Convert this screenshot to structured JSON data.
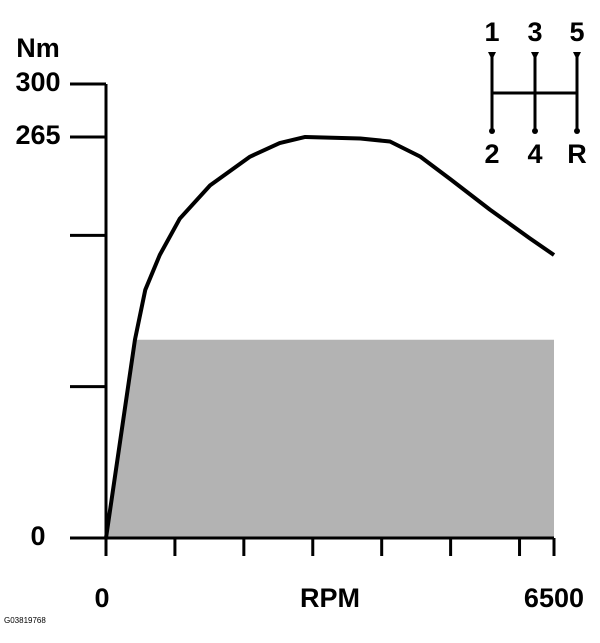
{
  "chart_data": {
    "type": "line",
    "ylabel": "Nm",
    "xlabel": "RPM",
    "x": [
      0,
      420,
      570,
      780,
      1070,
      1510,
      2090,
      2520,
      2890,
      3690,
      4120,
      4560,
      5000,
      5570,
      6150,
      6500
    ],
    "values": [
      0,
      131,
      164,
      187,
      211,
      233,
      252,
      261,
      265,
      264,
      262,
      252,
      237,
      217,
      198,
      187
    ],
    "color": "#000000",
    "shade_level": 131,
    "shade_color": "#b3b3b3",
    "xlim": [
      0,
      6500
    ],
    "xticks": [
      0,
      6500
    ],
    "xticks_minor": [
      1000,
      2000,
      3000,
      4000,
      5000,
      6000
    ],
    "ylim": [
      0,
      300
    ],
    "yticks": [
      0,
      265,
      300
    ],
    "yticks_minor": [
      100,
      200
    ]
  },
  "gear_labels": {
    "top": [
      "1",
      "3",
      "5"
    ],
    "bottom": [
      "2",
      "4",
      "R"
    ]
  },
  "footer": "G03819768"
}
